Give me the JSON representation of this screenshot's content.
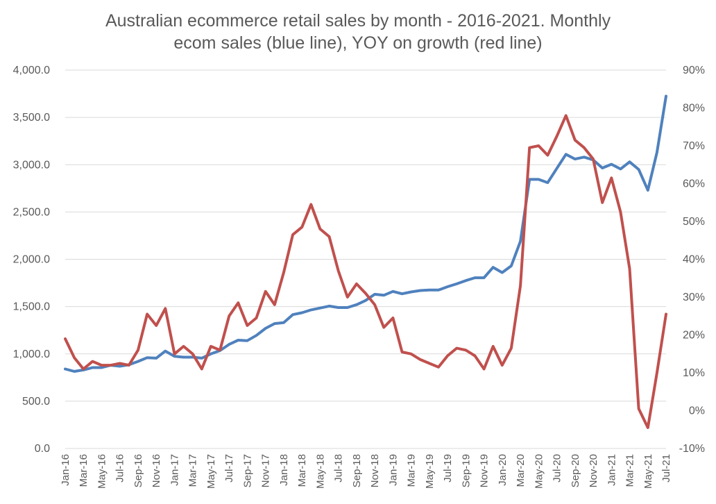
{
  "chart_data": {
    "type": "line",
    "title_lines": [
      "Australian ecommerce retail sales by month - 2016-2021. Monthly",
      "ecom sales (blue line), YOY on growth (red line)"
    ],
    "x": [
      "Jan-16",
      "Feb-16",
      "Mar-16",
      "Apr-16",
      "May-16",
      "Jun-16",
      "Jul-16",
      "Aug-16",
      "Sep-16",
      "Oct-16",
      "Nov-16",
      "Dec-16",
      "Jan-17",
      "Feb-17",
      "Mar-17",
      "Apr-17",
      "May-17",
      "Jun-17",
      "Jul-17",
      "Aug-17",
      "Sep-17",
      "Oct-17",
      "Nov-17",
      "Dec-17",
      "Jan-18",
      "Feb-18",
      "Mar-18",
      "Apr-18",
      "May-18",
      "Jun-18",
      "Jul-18",
      "Aug-18",
      "Sep-18",
      "Oct-18",
      "Nov-18",
      "Dec-18",
      "Jan-19",
      "Feb-19",
      "Mar-19",
      "Apr-19",
      "May-19",
      "Jun-19",
      "Jul-19",
      "Aug-19",
      "Sep-19",
      "Oct-19",
      "Nov-19",
      "Dec-19",
      "Jan-20",
      "Feb-20",
      "Mar-20",
      "Apr-20",
      "May-20",
      "Jun-20",
      "Jul-20",
      "Aug-20",
      "Sep-20",
      "Oct-20",
      "Nov-20",
      "Dec-20",
      "Jan-21",
      "Feb-21",
      "Mar-21",
      "Apr-21",
      "May-21",
      "Jun-21",
      "Jul-21"
    ],
    "x_tick_labels": [
      "Jan-16",
      "Mar-16",
      "May-16",
      "Jul-16",
      "Sep-16",
      "Nov-16",
      "Jan-17",
      "Mar-17",
      "May-17",
      "Jul-17",
      "Sep-17",
      "Nov-17",
      "Jan-18",
      "Mar-18",
      "May-18",
      "Jul-18",
      "Sep-18",
      "Nov-18",
      "Jan-19",
      "Mar-19",
      "May-19",
      "Jul-19",
      "Sep-19",
      "Nov-19",
      "Jan-20",
      "Mar-20",
      "May-20",
      "Jul-20",
      "Sep-20",
      "Nov-20",
      "Jan-21",
      "Mar-21",
      "May-21",
      "Jul-21"
    ],
    "y_left": {
      "min": 0,
      "max": 4000,
      "step": 500,
      "tick_labels": [
        "0.0",
        "500.0",
        "1,000.0",
        "1,500.0",
        "2,000.0",
        "2,500.0",
        "3,000.0",
        "3,500.0",
        "4,000.0"
      ]
    },
    "y_right": {
      "min": -10,
      "max": 90,
      "step": 10,
      "unit": "%",
      "tick_labels": [
        "-10%",
        "0%",
        "10%",
        "20%",
        "30%",
        "40%",
        "50%",
        "60%",
        "70%",
        "80%",
        "90%"
      ]
    },
    "grid": true,
    "series": [
      {
        "axis": "left",
        "color": "#4F81BD",
        "values": [
          840,
          815,
          830,
          855,
          855,
          880,
          870,
          885,
          920,
          960,
          955,
          1030,
          975,
          965,
          965,
          955,
          1000,
          1035,
          1100,
          1145,
          1140,
          1195,
          1270,
          1320,
          1330,
          1415,
          1435,
          1465,
          1485,
          1505,
          1490,
          1490,
          1520,
          1565,
          1630,
          1620,
          1660,
          1635,
          1655,
          1670,
          1675,
          1675,
          1710,
          1740,
          1775,
          1805,
          1805,
          1915,
          1860,
          1930,
          2190,
          2845,
          2845,
          2810,
          2960,
          3110,
          3060,
          3080,
          3050,
          2965,
          3005,
          2955,
          3030,
          2950,
          2730,
          3130,
          3725
        ]
      },
      {
        "axis": "right",
        "color": "#C0504D",
        "values": [
          19,
          14,
          11,
          13,
          12,
          12,
          12.5,
          12,
          16,
          25.5,
          22.5,
          27,
          15,
          17,
          15,
          11,
          17,
          16,
          25,
          28.5,
          22.5,
          24.5,
          31.5,
          28,
          36.5,
          46.5,
          48.5,
          54.5,
          48,
          46,
          37,
          30,
          33.5,
          31,
          28,
          22,
          24.5,
          15.5,
          15,
          13.5,
          12.5,
          11.5,
          14.5,
          16.5,
          16,
          14.5,
          11,
          17,
          12,
          16.5,
          33,
          69.5,
          70,
          67.5,
          72.5,
          78,
          71.5,
          69.5,
          66.5,
          55,
          61.5,
          52.5,
          37.5,
          0.5,
          -4.5,
          10,
          25.5
        ]
      }
    ]
  }
}
